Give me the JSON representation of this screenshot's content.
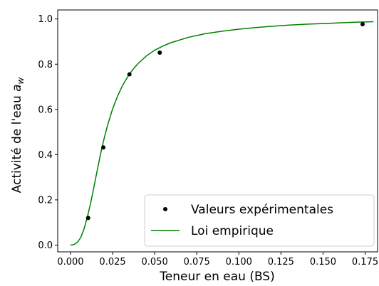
{
  "chart_data": {
    "type": "scatter",
    "title": "",
    "xlabel": "Teneur en eau (BS)",
    "ylabel_main": "Activité de l'eau ",
    "ylabel_symbol": "a",
    "ylabel_subscript": "w",
    "xlim": [
      -0.0076,
      0.1824
    ],
    "ylim": [
      -0.03,
      1.04
    ],
    "xticks": [
      0.0,
      0.025,
      0.05,
      0.075,
      0.1,
      0.125,
      0.15,
      0.175
    ],
    "xtick_labels": [
      "0.000",
      "0.025",
      "0.050",
      "0.075",
      "0.100",
      "0.125",
      "0.150",
      "0.175"
    ],
    "yticks": [
      0.0,
      0.2,
      0.4,
      0.6,
      0.8,
      1.0
    ],
    "ytick_labels": [
      "0.0",
      "0.2",
      "0.4",
      "0.6",
      "0.8",
      "1.0"
    ],
    "grid": false,
    "legend_position": "bottom-right",
    "series": [
      {
        "name": "Valeurs expérimentales",
        "kind": "scatter",
        "color": "#000000",
        "x": [
          0.0105,
          0.0195,
          0.035,
          0.053,
          0.1735
        ],
        "y": [
          0.12,
          0.432,
          0.755,
          0.851,
          0.977
        ]
      },
      {
        "name": "Loi empirique",
        "kind": "line",
        "color": "#008000",
        "x": [
          0.0,
          0.002,
          0.004,
          0.006,
          0.008,
          0.01,
          0.012,
          0.014,
          0.016,
          0.018,
          0.02,
          0.022,
          0.025,
          0.028,
          0.031,
          0.034,
          0.037,
          0.04,
          0.045,
          0.05,
          0.055,
          0.06,
          0.07,
          0.08,
          0.09,
          0.1,
          0.11,
          0.12,
          0.13,
          0.14,
          0.15,
          0.16,
          0.17,
          0.18
        ],
        "y": [
          0.0,
          0.002,
          0.012,
          0.032,
          0.07,
          0.123,
          0.187,
          0.26,
          0.335,
          0.408,
          0.472,
          0.53,
          0.602,
          0.66,
          0.707,
          0.745,
          0.776,
          0.802,
          0.836,
          0.862,
          0.881,
          0.896,
          0.919,
          0.935,
          0.946,
          0.955,
          0.962,
          0.968,
          0.973,
          0.977,
          0.98,
          0.983,
          0.986,
          0.988
        ]
      }
    ]
  }
}
